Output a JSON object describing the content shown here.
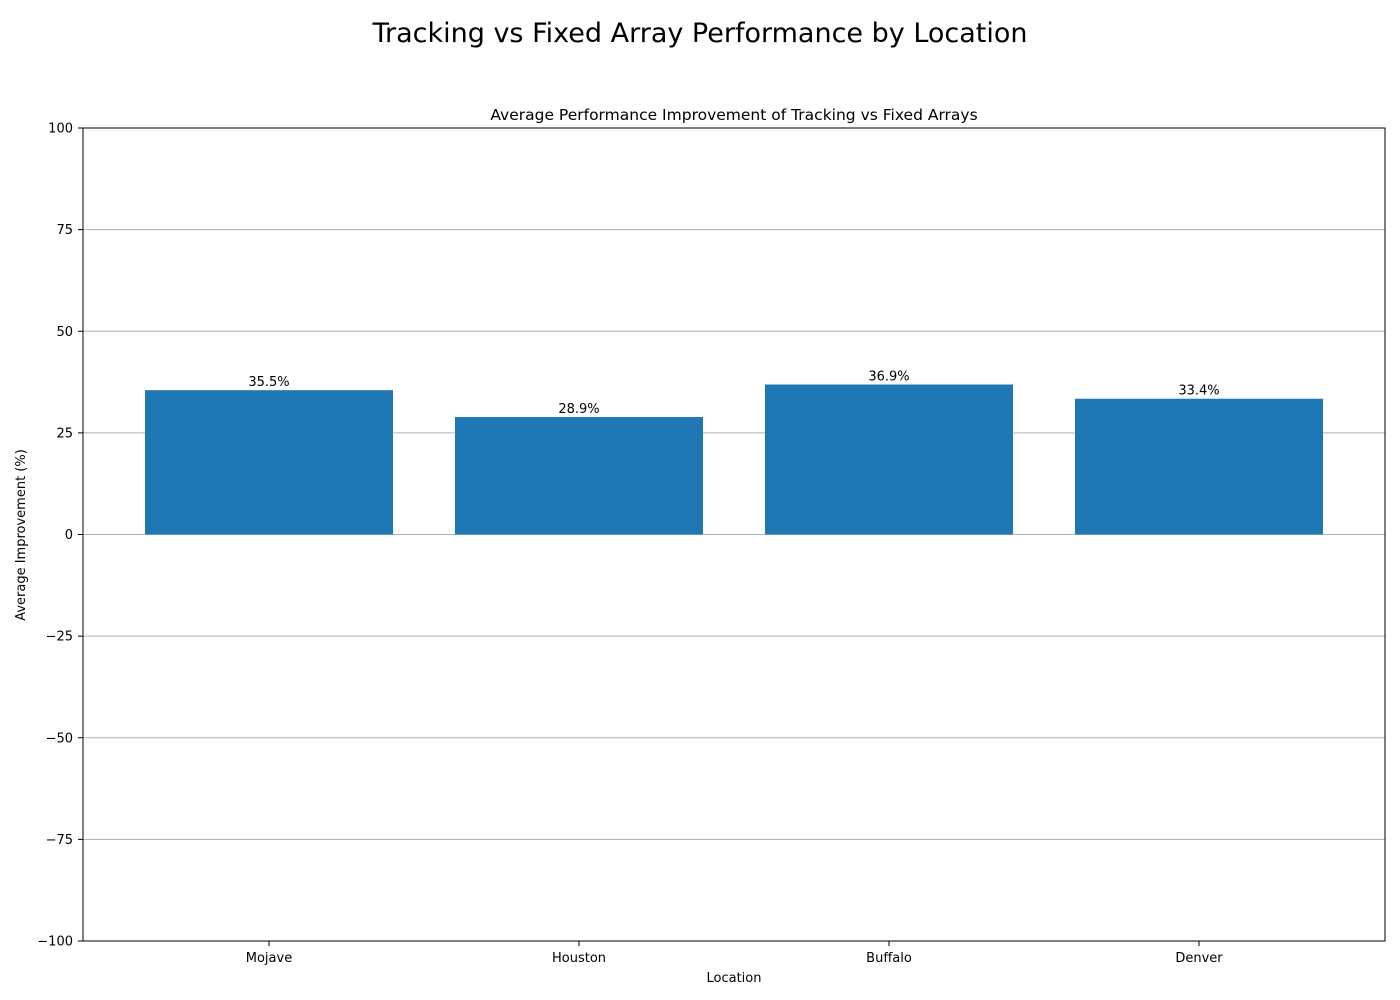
{
  "chart_data": {
    "type": "bar",
    "suptitle": "Tracking vs Fixed Array Performance by Location",
    "title": "Average Performance Improvement of Tracking vs Fixed Arrays",
    "xlabel": "Location",
    "ylabel": "Average Improvement (%)",
    "categories": [
      "Mojave",
      "Houston",
      "Buffalo",
      "Denver"
    ],
    "values": [
      35.5,
      28.9,
      36.9,
      33.4
    ],
    "data_labels": [
      "35.5%",
      "28.9%",
      "36.9%",
      "33.4%"
    ],
    "ylim": [
      -100,
      100
    ],
    "yticks": [
      100,
      75,
      50,
      25,
      0,
      -25,
      -50,
      -75,
      -100
    ],
    "ytick_labels": [
      "100",
      "75",
      "50",
      "25",
      "0",
      "−25",
      "−50",
      "−75",
      "−100"
    ],
    "grid": "y",
    "bar_color": "#1f77b4"
  }
}
